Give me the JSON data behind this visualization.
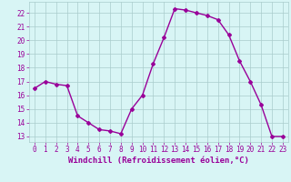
{
  "x": [
    0,
    1,
    2,
    3,
    4,
    5,
    6,
    7,
    8,
    9,
    10,
    11,
    12,
    13,
    14,
    15,
    16,
    17,
    18,
    19,
    20,
    21,
    22,
    23
  ],
  "y": [
    16.5,
    17.0,
    16.8,
    16.7,
    14.5,
    14.0,
    13.5,
    13.4,
    13.2,
    15.0,
    16.0,
    18.3,
    20.2,
    22.3,
    22.2,
    22.0,
    21.8,
    21.5,
    20.4,
    18.5,
    17.0,
    15.3,
    13.0,
    13.0
  ],
  "line_color": "#990099",
  "marker": "D",
  "marker_size": 2,
  "bg_color": "#d8f5f5",
  "grid_color": "#aacccc",
  "xlabel": "Windchill (Refroidissement éolien,°C)",
  "xlabel_color": "#990099",
  "xlabel_fontsize": 6.5,
  "yticks": [
    13,
    14,
    15,
    16,
    17,
    18,
    19,
    20,
    21,
    22
  ],
  "xticks": [
    0,
    1,
    2,
    3,
    4,
    5,
    6,
    7,
    8,
    9,
    10,
    11,
    12,
    13,
    14,
    15,
    16,
    17,
    18,
    19,
    20,
    21,
    22,
    23
  ],
  "ylim": [
    12.6,
    22.8
  ],
  "xlim": [
    -0.5,
    23.5
  ],
  "tick_color": "#990099",
  "tick_fontsize": 5.5,
  "line_width": 1.0
}
